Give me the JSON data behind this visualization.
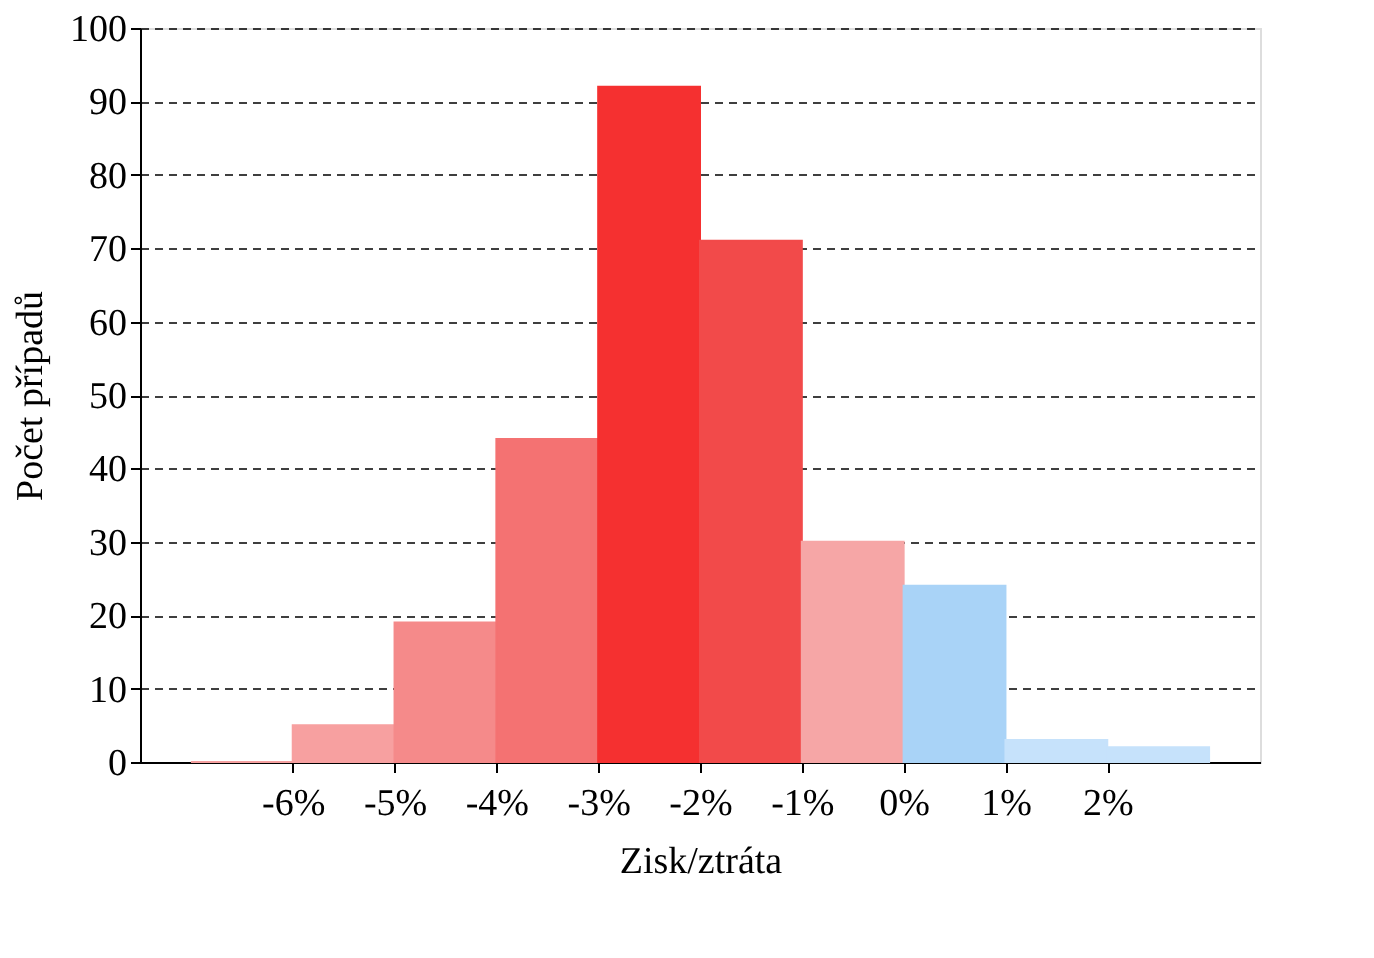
{
  "chart_data": {
    "type": "histogram",
    "xlabel": "Zisk/ztráta",
    "ylabel": "Počet případů",
    "bins": [
      -7,
      -6,
      -5,
      -4,
      -3,
      -2,
      -1,
      0,
      1,
      2,
      3
    ],
    "values": [
      0,
      5,
      19,
      44,
      92,
      71,
      30,
      24,
      3,
      2
    ],
    "colors": [
      "#f5a0a0",
      "#f7a0a0",
      "#f58a8a",
      "#f47272",
      "#f53030",
      "#f24a4a",
      "#f6a6a6",
      "#a9d3f7",
      "#c6e2fb",
      "#c6e2fb"
    ],
    "xlim": [
      -7.5,
      3.5
    ],
    "xticks": [
      {
        "value": -6,
        "label": "-6%"
      },
      {
        "value": -5,
        "label": "-5%"
      },
      {
        "value": -4,
        "label": "-4%"
      },
      {
        "value": -3,
        "label": "-3%"
      },
      {
        "value": -2,
        "label": "-2%"
      },
      {
        "value": -1,
        "label": "-1%"
      },
      {
        "value": 0,
        "label": "0%"
      },
      {
        "value": 1,
        "label": "1%"
      },
      {
        "value": 2,
        "label": "2%"
      }
    ],
    "ylim": [
      0,
      100
    ],
    "yticks": [
      0,
      10,
      20,
      30,
      40,
      50,
      60,
      70,
      80,
      90,
      100
    ],
    "grid": "y"
  }
}
